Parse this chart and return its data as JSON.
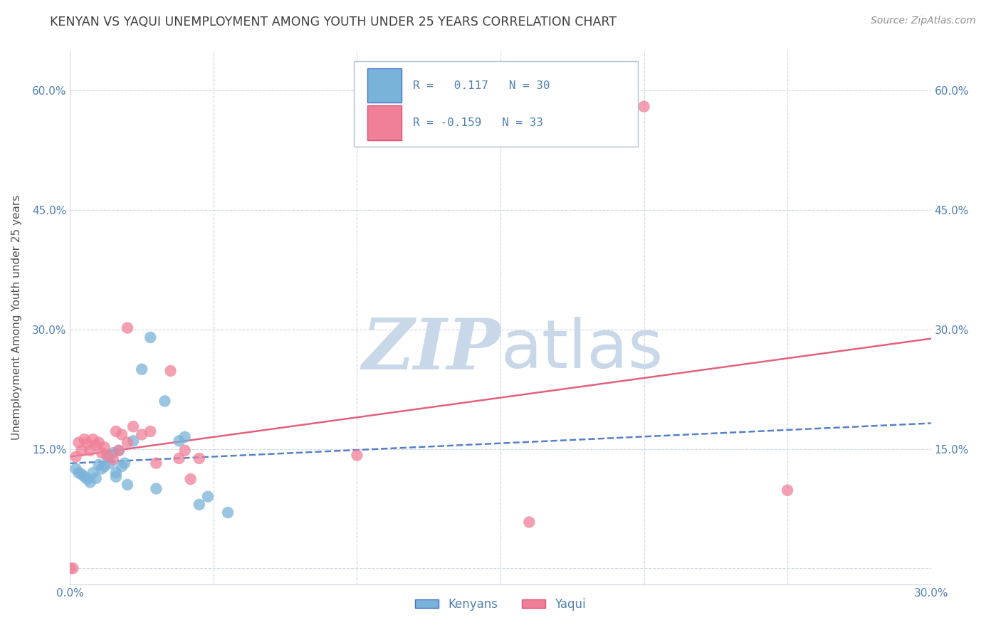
{
  "title": "KENYAN VS YAQUI UNEMPLOYMENT AMONG YOUTH UNDER 25 YEARS CORRELATION CHART",
  "source": "Source: ZipAtlas.com",
  "ylabel": "Unemployment Among Youth under 25 years",
  "xlim": [
    0.0,
    0.3
  ],
  "ylim": [
    -0.02,
    0.65
  ],
  "yticks": [
    0.0,
    0.15,
    0.3,
    0.45,
    0.6
  ],
  "ytick_labels": [
    "",
    "15.0%",
    "30.0%",
    "45.0%",
    "60.0%"
  ],
  "xticks": [
    0.0,
    0.05,
    0.1,
    0.15,
    0.2,
    0.25,
    0.3
  ],
  "xtick_labels": [
    "0.0%",
    "",
    "",
    "",
    "",
    "",
    "30.0%"
  ],
  "kenyan_x": [
    0.002,
    0.003,
    0.004,
    0.005,
    0.006,
    0.007,
    0.008,
    0.009,
    0.01,
    0.011,
    0.012,
    0.013,
    0.014,
    0.015,
    0.016,
    0.016,
    0.017,
    0.018,
    0.019,
    0.02,
    0.022,
    0.025,
    0.028,
    0.03,
    0.033,
    0.038,
    0.04,
    0.045,
    0.048,
    0.055
  ],
  "kenyan_y": [
    0.125,
    0.12,
    0.118,
    0.115,
    0.112,
    0.108,
    0.12,
    0.113,
    0.13,
    0.125,
    0.128,
    0.14,
    0.132,
    0.145,
    0.12,
    0.115,
    0.148,
    0.128,
    0.132,
    0.105,
    0.16,
    0.25,
    0.29,
    0.1,
    0.21,
    0.16,
    0.165,
    0.08,
    0.09,
    0.07
  ],
  "yaqui_x": [
    0.0,
    0.001,
    0.002,
    0.003,
    0.004,
    0.005,
    0.006,
    0.007,
    0.008,
    0.009,
    0.01,
    0.011,
    0.012,
    0.013,
    0.015,
    0.016,
    0.017,
    0.018,
    0.02,
    0.022,
    0.025,
    0.028,
    0.03,
    0.035,
    0.038,
    0.04,
    0.042,
    0.045,
    0.1,
    0.16,
    0.2,
    0.25,
    0.02
  ],
  "yaqui_y": [
    0.0,
    0.0,
    0.14,
    0.158,
    0.148,
    0.162,
    0.157,
    0.148,
    0.162,
    0.155,
    0.158,
    0.145,
    0.152,
    0.142,
    0.137,
    0.172,
    0.148,
    0.168,
    0.158,
    0.178,
    0.168,
    0.172,
    0.132,
    0.248,
    0.138,
    0.148,
    0.112,
    0.138,
    0.142,
    0.058,
    0.58,
    0.098,
    0.302
  ],
  "kenyan_color": "#7ab3d9",
  "yaqui_color": "#f08098",
  "trendline_kenyan_color": "#4472c4",
  "trendline_yaqui_color": "#e05070",
  "watermark_zip_color": "#c8d8e8",
  "watermark_atlas_color": "#c8d8e8",
  "background_color": "#ffffff",
  "grid_color": "#d0d8e0",
  "title_color": "#404040",
  "axis_label_color": "#505050",
  "tick_color": "#5080b0",
  "source_color": "#909090",
  "legend_border_color": "#b0c0d0"
}
